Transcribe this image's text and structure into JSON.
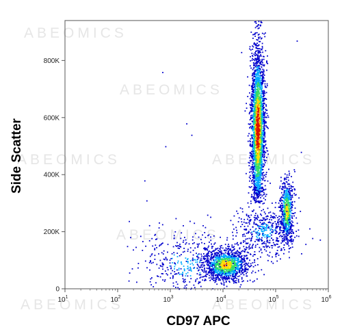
{
  "chart_data": {
    "type": "scatter",
    "style": "flow-cytometry density dot plot (pseudocolor, blue = low density, red = high density)",
    "xlabel": "CD97 APC",
    "ylabel": "Side Scatter",
    "x_scale": "log",
    "xlim": [
      10,
      1000000
    ],
    "y_scale": "linear",
    "ylim": [
      0,
      940000
    ],
    "x_ticks": [
      {
        "base": "10",
        "exp": "1",
        "value": 10
      },
      {
        "base": "10",
        "exp": "2",
        "value": 100
      },
      {
        "base": "10",
        "exp": "3",
        "value": 1000
      },
      {
        "base": "10",
        "exp": "4",
        "value": 10000
      },
      {
        "base": "10",
        "exp": "5",
        "value": 100000
      },
      {
        "base": "10",
        "exp": "6",
        "value": 1000000
      }
    ],
    "y_ticks": [
      {
        "label": "0",
        "value": 0
      },
      {
        "label": "200K",
        "value": 200000
      },
      {
        "label": "400K",
        "value": 400000
      },
      {
        "label": "600K",
        "value": 600000
      },
      {
        "label": "800K",
        "value": 800000
      }
    ],
    "watermark_text": "ABEOMICS",
    "populations": [
      {
        "x_center": 45000,
        "y_center": 560000,
        "x_spread_log": 0.07,
        "y_spread": 155000,
        "y_range": [
          300000,
          940000
        ],
        "count": 2600
      },
      {
        "x_center": 11000,
        "y_center": 85000,
        "x_spread_log": 0.22,
        "y_spread": 28000,
        "y_range": [
          15000,
          200000
        ],
        "count": 1200
      },
      {
        "x_center": 160000,
        "y_center": 275000,
        "x_spread_log": 0.06,
        "y_spread": 60000,
        "y_range": [
          120000,
          420000
        ],
        "count": 650
      },
      {
        "x_center": 60000,
        "y_center": 200000,
        "x_spread_log": 0.3,
        "y_spread": 45000,
        "y_range": [
          60000,
          330000
        ],
        "count": 500
      },
      {
        "x_center": 2000,
        "y_center": 90000,
        "x_spread_log": 0.45,
        "y_spread": 60000,
        "y_range": [
          0,
          300000
        ],
        "count": 420
      }
    ],
    "scattered_outliers": [
      {
        "x": 700,
        "y": 760000
      },
      {
        "x": 2000,
        "y": 580000
      },
      {
        "x": 22000,
        "y": 830000
      },
      {
        "x": 2500,
        "y": 540000
      },
      {
        "x": 800,
        "y": 500000
      },
      {
        "x": 320,
        "y": 380000
      },
      {
        "x": 350,
        "y": 310000
      },
      {
        "x": 5000,
        "y": 260000
      },
      {
        "x": 250000,
        "y": 870000
      },
      {
        "x": 300000,
        "y": 480000
      }
    ],
    "colors": {
      "low": "#0000cc",
      "mid_low": "#00aaff",
      "mid": "#33dd66",
      "mid_high": "#ffdd00",
      "high": "#dd1100"
    }
  }
}
